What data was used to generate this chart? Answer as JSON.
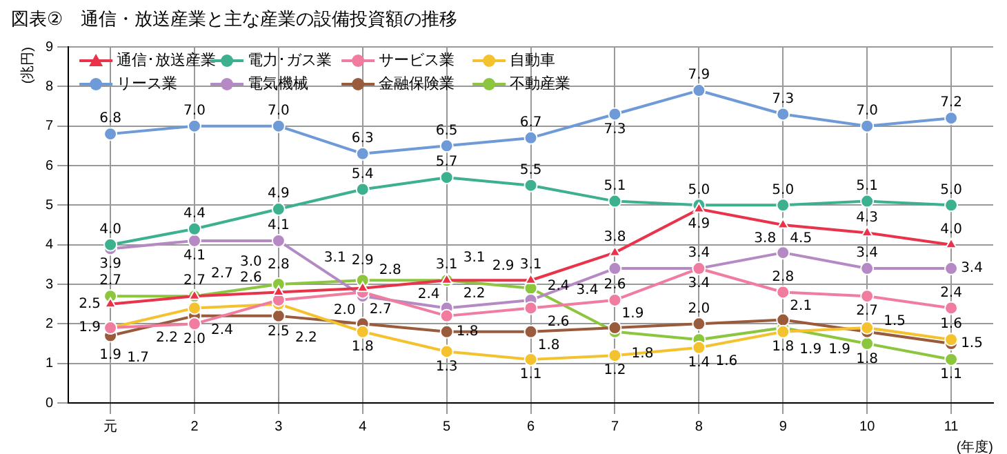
{
  "chart_data": {
    "type": "line",
    "title": "図表②　通信・放送産業と主な産業の設備投資額の推移",
    "ylabel": "(兆円)",
    "xlabel": "(年度)",
    "categories": [
      "元",
      "2",
      "3",
      "4",
      "5",
      "6",
      "7",
      "8",
      "9",
      "10",
      "11"
    ],
    "series": [
      {
        "name": "通信･放送産業",
        "color": "#e8334a",
        "marker": "triangle",
        "values": [
          2.5,
          2.7,
          2.8,
          2.9,
          3.1,
          3.1,
          3.8,
          4.9,
          4.5,
          4.3,
          4.0
        ],
        "value_labels": [
          "2.5",
          "2.7",
          "2.8",
          "2.9",
          "3.1",
          "3.1",
          "3.8",
          "4.9",
          "4.5",
          "4.3",
          "4.0"
        ]
      },
      {
        "name": "電力･ガス業",
        "color": "#3cb08f",
        "values": [
          4.0,
          4.4,
          4.9,
          5.4,
          5.7,
          5.5,
          5.1,
          5.0,
          5.0,
          5.1,
          5.0
        ],
        "value_labels": [
          "4.0",
          "4.4",
          "4.9",
          "5.4",
          "5.7",
          "5.5",
          "5.1",
          "5.0",
          "5.0",
          "5.1",
          "5.0"
        ]
      },
      {
        "name": "サービス業",
        "color": "#f07ca0",
        "values": [
          1.9,
          2.0,
          2.6,
          2.8,
          2.2,
          2.4,
          2.6,
          3.4,
          2.8,
          2.7,
          2.4
        ],
        "value_labels": [
          "1.9",
          "2.0",
          "2.6",
          "2.8",
          "2.2",
          "2.4",
          "2.6",
          "3.4",
          "2.8",
          "2.7",
          "2.4"
        ]
      },
      {
        "name": "自動車",
        "color": "#f5c22f",
        "values": [
          1.9,
          2.4,
          2.5,
          1.8,
          1.3,
          1.1,
          1.2,
          1.4,
          1.8,
          1.9,
          1.6
        ],
        "value_labels": [
          "1.9",
          "2.4",
          "2.5",
          "1.8",
          "1.3",
          "1.1",
          "1.2",
          "1.4",
          "1.8",
          "1.9",
          "1.6"
        ]
      },
      {
        "name": "リース業",
        "color": "#6f9ad8",
        "values": [
          6.8,
          7.0,
          7.0,
          6.3,
          6.5,
          6.7,
          7.3,
          7.9,
          7.3,
          7.0,
          7.2
        ],
        "value_labels": [
          "6.8",
          "7.0",
          "7.0",
          "6.3",
          "6.5",
          "6.7",
          "7.3",
          "7.9",
          "7.3",
          "7.0",
          "7.2"
        ]
      },
      {
        "name": "電気機械",
        "color": "#b58ac4",
        "values": [
          3.9,
          4.1,
          4.1,
          2.7,
          2.4,
          2.6,
          3.4,
          3.4,
          3.8,
          3.4,
          3.4
        ],
        "value_labels": [
          "3.9",
          "4.1",
          "4.1",
          "2.7",
          "2.4",
          "2.6",
          "3.4",
          "3.4",
          "3.8",
          "3.4",
          "3.4"
        ]
      },
      {
        "name": "金融保険業",
        "color": "#9a5a3c",
        "values": [
          1.7,
          2.2,
          2.2,
          2.0,
          1.8,
          1.8,
          1.9,
          2.0,
          2.1,
          1.8,
          1.5
        ],
        "value_labels": [
          "1.7",
          "2.2",
          "2.2",
          "2.0",
          "1.8",
          "1.8",
          "1.9",
          "2.0",
          "2.1",
          "1.8",
          "1.5"
        ]
      },
      {
        "name": "不動産業",
        "color": "#8cc63f",
        "values": [
          2.7,
          2.7,
          3.0,
          3.1,
          3.1,
          2.9,
          1.8,
          1.6,
          1.9,
          1.5,
          1.1
        ],
        "value_labels": [
          "2.7",
          "2.7",
          "3.0",
          "3.1",
          "3.1",
          "2.9",
          "1.8",
          "1.6",
          "1.9",
          "1.5",
          "1.1"
        ]
      }
    ],
    "ylim": [
      0,
      9
    ],
    "yticks": [
      0,
      1,
      2,
      3,
      4,
      5,
      6,
      7,
      8,
      9
    ],
    "grid": true,
    "legend": "top left",
    "marker": "circle"
  }
}
